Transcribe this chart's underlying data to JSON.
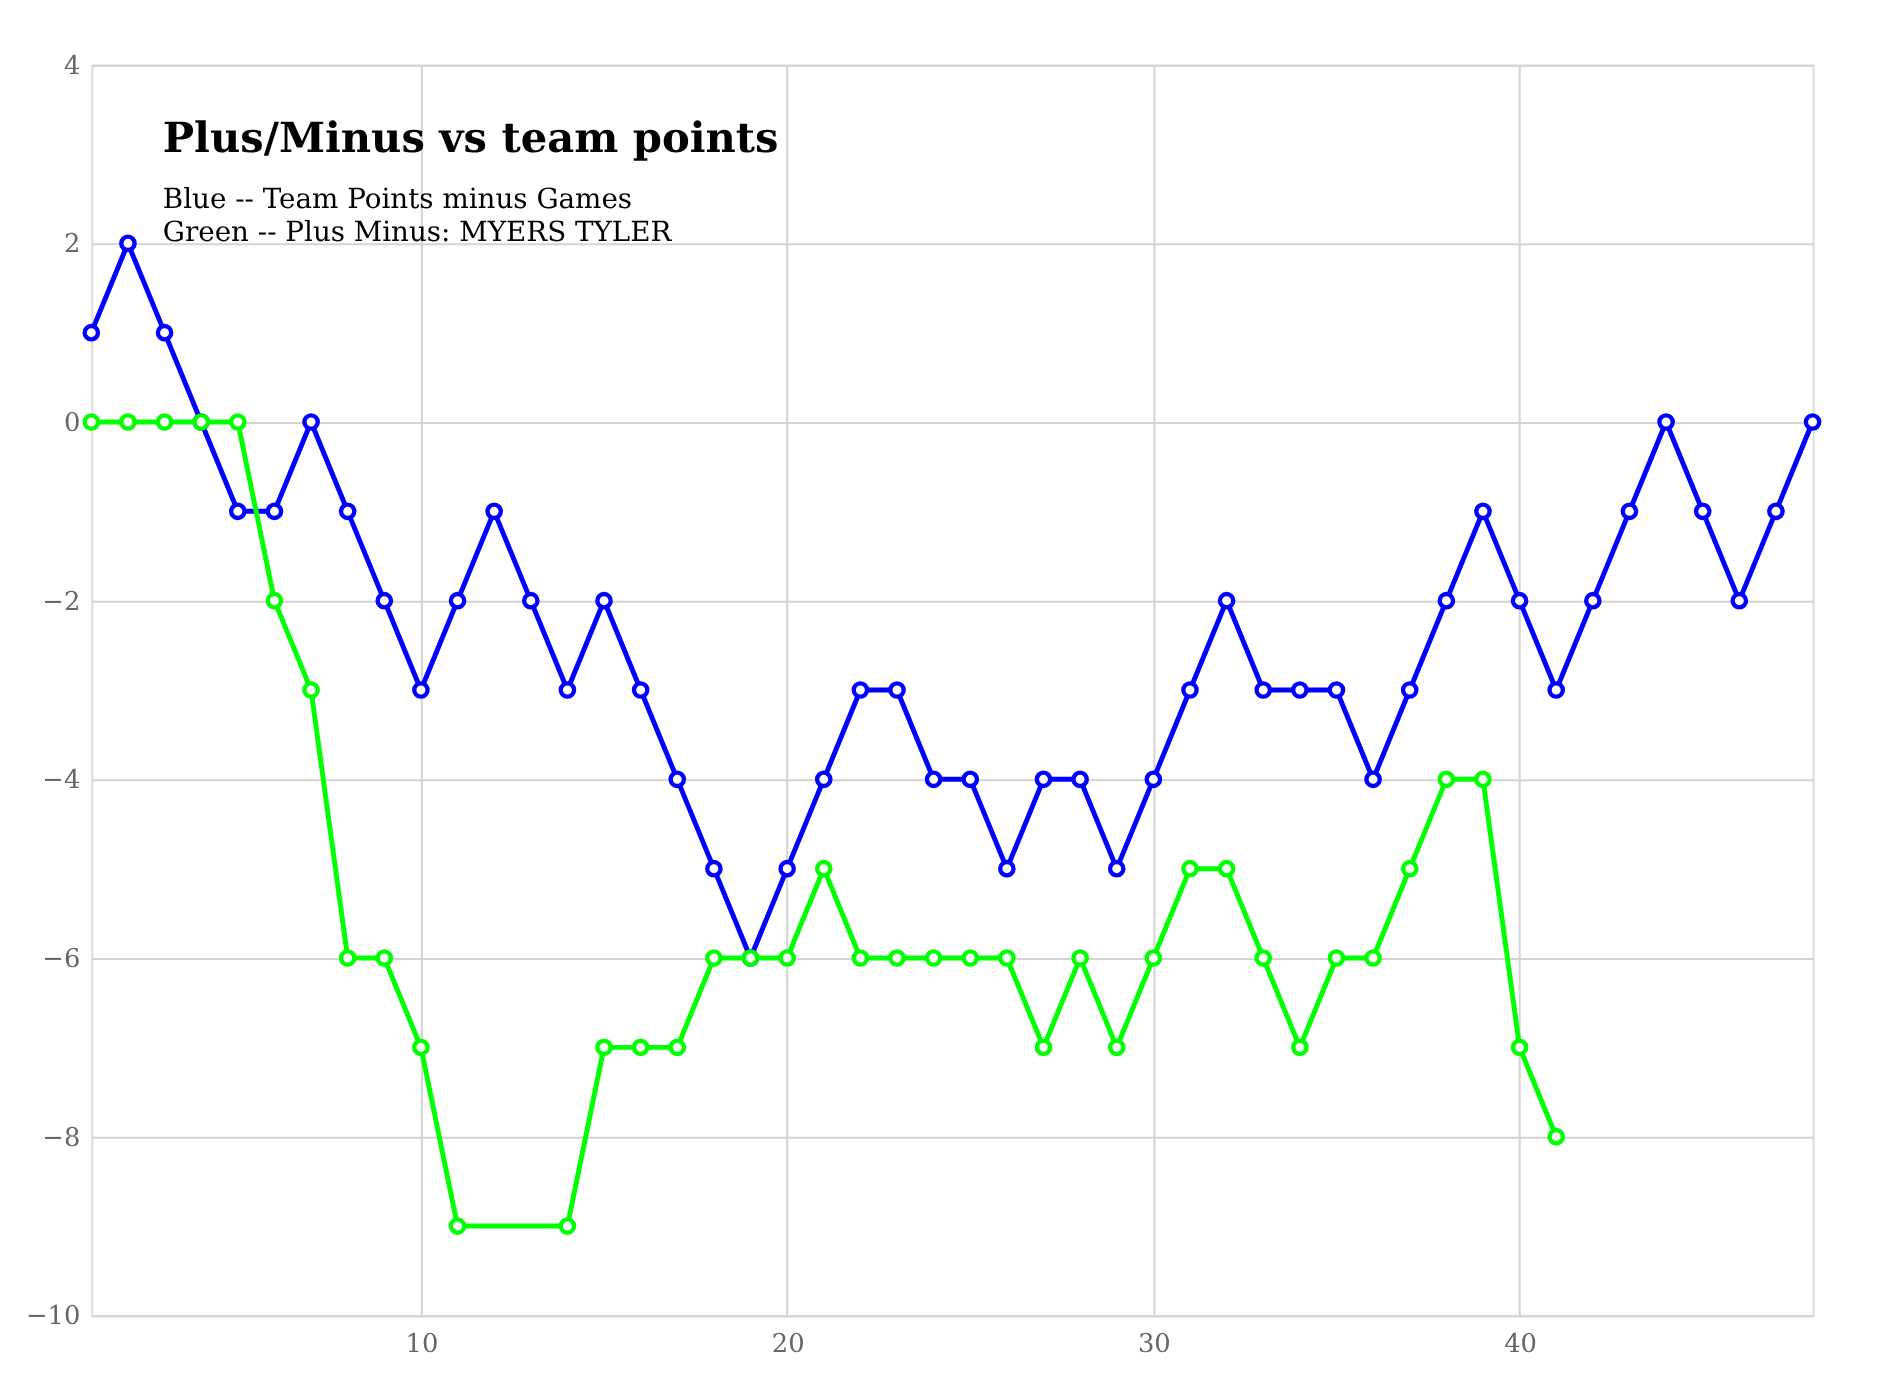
{
  "chart_data": {
    "type": "line",
    "title": "Plus/Minus vs team points",
    "annotations": [
      "Blue -- Team Points minus Games",
      "Green -- Plus Minus: MYERS TYLER"
    ],
    "x": [
      1,
      2,
      3,
      4,
      5,
      6,
      7,
      8,
      9,
      10,
      11,
      12,
      13,
      14,
      15,
      16,
      17,
      18,
      19,
      20,
      21,
      22,
      23,
      24,
      25,
      26,
      27,
      28,
      29,
      30,
      31,
      32,
      33,
      34,
      35,
      36,
      37,
      38,
      39,
      40,
      41,
      42,
      43,
      44,
      45,
      46,
      47,
      48
    ],
    "series": [
      {
        "color": "#0000ff",
        "values": [
          1,
          2,
          1,
          0,
          -1,
          -1,
          0,
          -1,
          -2,
          -3,
          -2,
          -1,
          -2,
          -3,
          -2,
          -3,
          -4,
          -5,
          -6,
          -5,
          -4,
          -3,
          -3,
          -4,
          -4,
          -5,
          -4,
          -4,
          -5,
          -4,
          -3,
          -2,
          -3,
          -3,
          -3,
          -4,
          -3,
          -2,
          -1,
          -2,
          -3,
          -2,
          -1,
          0,
          -1,
          -2,
          -1,
          0
        ]
      },
      {
        "color": "#00ff00",
        "x": [
          1,
          2,
          3,
          4,
          5,
          6,
          7,
          8,
          9,
          10,
          11,
          14,
          15,
          16,
          17,
          18,
          19,
          20,
          21,
          22,
          23,
          24,
          25,
          26,
          27,
          28,
          29,
          30,
          31,
          32,
          33,
          34,
          35,
          36,
          37,
          38,
          39,
          40,
          41
        ],
        "values": [
          0,
          0,
          0,
          0,
          0,
          -2,
          -3,
          -6,
          -6,
          -7,
          -9,
          -9,
          -7,
          -7,
          -7,
          -6,
          -6,
          -6,
          -5,
          -6,
          -6,
          -6,
          -6,
          -6,
          -7,
          -6,
          -7,
          -6,
          -5,
          -5,
          -6,
          -7,
          -6,
          -6,
          -5,
          -4,
          -4,
          -7,
          -8
        ]
      }
    ],
    "xlim": [
      1,
      48
    ],
    "xticks": [
      10,
      20,
      30,
      40
    ],
    "ylim": [
      -10,
      4
    ],
    "yticks": [
      -10,
      -8,
      -6,
      -4,
      -2,
      0,
      2,
      4
    ],
    "grid": true,
    "marker": "circle",
    "line_style": "solid"
  }
}
